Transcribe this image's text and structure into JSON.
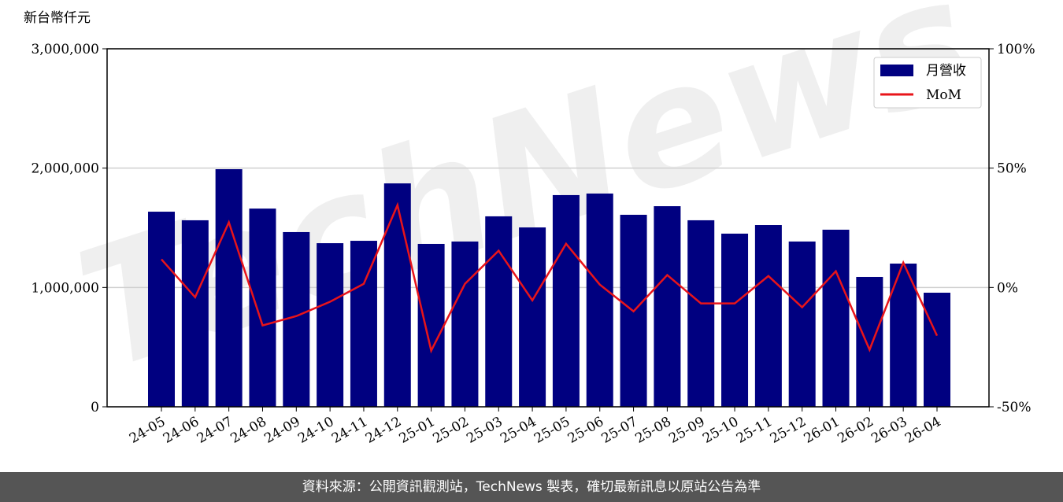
{
  "chart_data": {
    "type": "bar-line",
    "unit_label": "新台幣仟元",
    "watermark": "TechNews",
    "categories": [
      "24-05",
      "24-06",
      "24-07",
      "24-08",
      "24-09",
      "24-10",
      "24-11",
      "24-12",
      "25-01",
      "25-02",
      "25-03",
      "25-04",
      "25-05",
      "25-06",
      "25-07",
      "25-08",
      "25-09",
      "25-10",
      "25-11",
      "25-12",
      "26-01",
      "26-02",
      "26-03",
      "26-04"
    ],
    "series": [
      {
        "name": "月營收",
        "type": "bar",
        "color": "#000080",
        "values": [
          1635000,
          1563000,
          1991000,
          1661000,
          1464000,
          1371000,
          1391000,
          1872000,
          1365000,
          1385000,
          1596000,
          1503000,
          1774000,
          1787000,
          1609000,
          1681000,
          1563000,
          1451000,
          1523000,
          1385000,
          1484000,
          1088000,
          1200000,
          956000
        ]
      },
      {
        "name": "MoM",
        "type": "line",
        "axis": "y2",
        "color": "#e8141a",
        "values": [
          11.8,
          -4.1,
          27.3,
          -15.9,
          -12.0,
          -6.0,
          1.5,
          34.5,
          -26.5,
          1.5,
          15.4,
          -5.4,
          18.3,
          1.2,
          -10.0,
          5.2,
          -6.7,
          -6.7,
          4.8,
          -8.3,
          6.8,
          -26.1,
          10.4,
          -20.2
        ]
      }
    ],
    "ylim": [
      0,
      3000000
    ],
    "yticks": [
      0,
      {
        "value": 1000000,
        "label": "1,000,000"
      },
      {
        "value": 2000000,
        "label": "2,000,000"
      },
      {
        "value": 3000000,
        "label": "3,000,000"
      }
    ],
    "y2lim": [
      -50,
      100
    ],
    "y2ticks": [
      {
        "value": -50,
        "label": "-50%"
      },
      {
        "value": 0,
        "label": "0%"
      },
      {
        "value": 50,
        "label": "50%"
      },
      {
        "value": 100,
        "label": "100%"
      }
    ],
    "grid": true,
    "legend": "upper right",
    "footer": "資料來源：公開資訊觀測站，TechNews 製表，確切最新訊息以原站公告為準"
  }
}
